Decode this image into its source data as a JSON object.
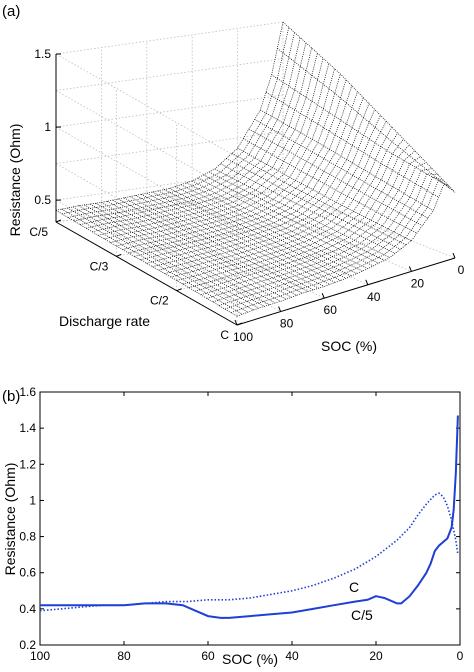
{
  "chart_data": [
    {
      "panel_label": "(a)",
      "type": "surface3d",
      "zlabel": "Resistance (Ohm)",
      "xlabel": "SOC (%)",
      "ylabel": "Discharge rate",
      "z_ticks": [
        "0.5",
        "1",
        "1.5"
      ],
      "x_ticks": [
        "100",
        "80",
        "60",
        "40",
        "20",
        "0"
      ],
      "y_ticks": [
        "C/5",
        "C/3",
        "C/2",
        "C"
      ],
      "zlim": [
        0.35,
        1.5
      ],
      "xlim": [
        0,
        100
      ],
      "grid": true,
      "color": "#000000",
      "surface": {
        "soc": [
          100,
          90,
          80,
          70,
          60,
          50,
          40,
          30,
          20,
          10,
          5,
          0
        ],
        "rates": [
          "C/5",
          "C/3",
          "C/2",
          "C"
        ],
        "resistance": [
          [
            0.43,
            0.44,
            0.44,
            0.45,
            0.46,
            0.47,
            0.5,
            0.56,
            0.68,
            0.92,
            1.15,
            1.5
          ],
          [
            0.42,
            0.43,
            0.43,
            0.44,
            0.45,
            0.46,
            0.48,
            0.53,
            0.63,
            0.86,
            1.05,
            1.3
          ],
          [
            0.42,
            0.42,
            0.43,
            0.43,
            0.44,
            0.45,
            0.47,
            0.51,
            0.59,
            0.79,
            0.95,
            1.05
          ],
          [
            0.41,
            0.42,
            0.42,
            0.43,
            0.43,
            0.44,
            0.46,
            0.49,
            0.56,
            0.72,
            0.88,
            0.8
          ]
        ]
      }
    },
    {
      "panel_label": "(b)",
      "type": "line",
      "xlabel": "SOC (%)",
      "ylabel": "Resistance (Ohm)",
      "xlim": [
        100,
        0
      ],
      "ylim": [
        0.2,
        1.6
      ],
      "x_ticks": [
        "100",
        "80",
        "60",
        "40",
        "20",
        "0"
      ],
      "y_ticks": [
        "0.2",
        "0.4",
        "0.6",
        "0.8",
        "1",
        "1.2",
        "1.4",
        "1.6"
      ],
      "grid": false,
      "color": "#1f3fd6",
      "series": [
        {
          "name": "C",
          "style": "dotted",
          "x": [
            100,
            95,
            90,
            85,
            80,
            75,
            70,
            65,
            60,
            55,
            50,
            45,
            40,
            35,
            30,
            25,
            20,
            15,
            12,
            10,
            8,
            6,
            5,
            4,
            3,
            2,
            1,
            0.5
          ],
          "y": [
            0.39,
            0.4,
            0.41,
            0.42,
            0.42,
            0.43,
            0.44,
            0.44,
            0.45,
            0.45,
            0.46,
            0.48,
            0.5,
            0.53,
            0.57,
            0.62,
            0.69,
            0.78,
            0.85,
            0.92,
            0.98,
            1.03,
            1.04,
            1.02,
            0.97,
            0.89,
            0.78,
            0.7
          ]
        },
        {
          "name": "C/5",
          "style": "solid",
          "x": [
            100,
            95,
            90,
            85,
            80,
            75,
            70,
            66,
            63,
            60,
            57,
            55,
            50,
            45,
            40,
            35,
            30,
            25,
            22,
            20,
            18,
            16,
            15,
            14,
            12,
            10,
            8,
            7,
            6,
            5,
            4,
            3,
            2,
            1.5,
            1,
            0.5
          ],
          "y": [
            0.42,
            0.42,
            0.42,
            0.42,
            0.42,
            0.43,
            0.43,
            0.42,
            0.39,
            0.36,
            0.35,
            0.35,
            0.36,
            0.37,
            0.38,
            0.4,
            0.42,
            0.44,
            0.45,
            0.47,
            0.46,
            0.44,
            0.43,
            0.43,
            0.47,
            0.53,
            0.6,
            0.65,
            0.72,
            0.75,
            0.77,
            0.79,
            0.85,
            0.95,
            1.15,
            1.47
          ]
        }
      ]
    }
  ]
}
